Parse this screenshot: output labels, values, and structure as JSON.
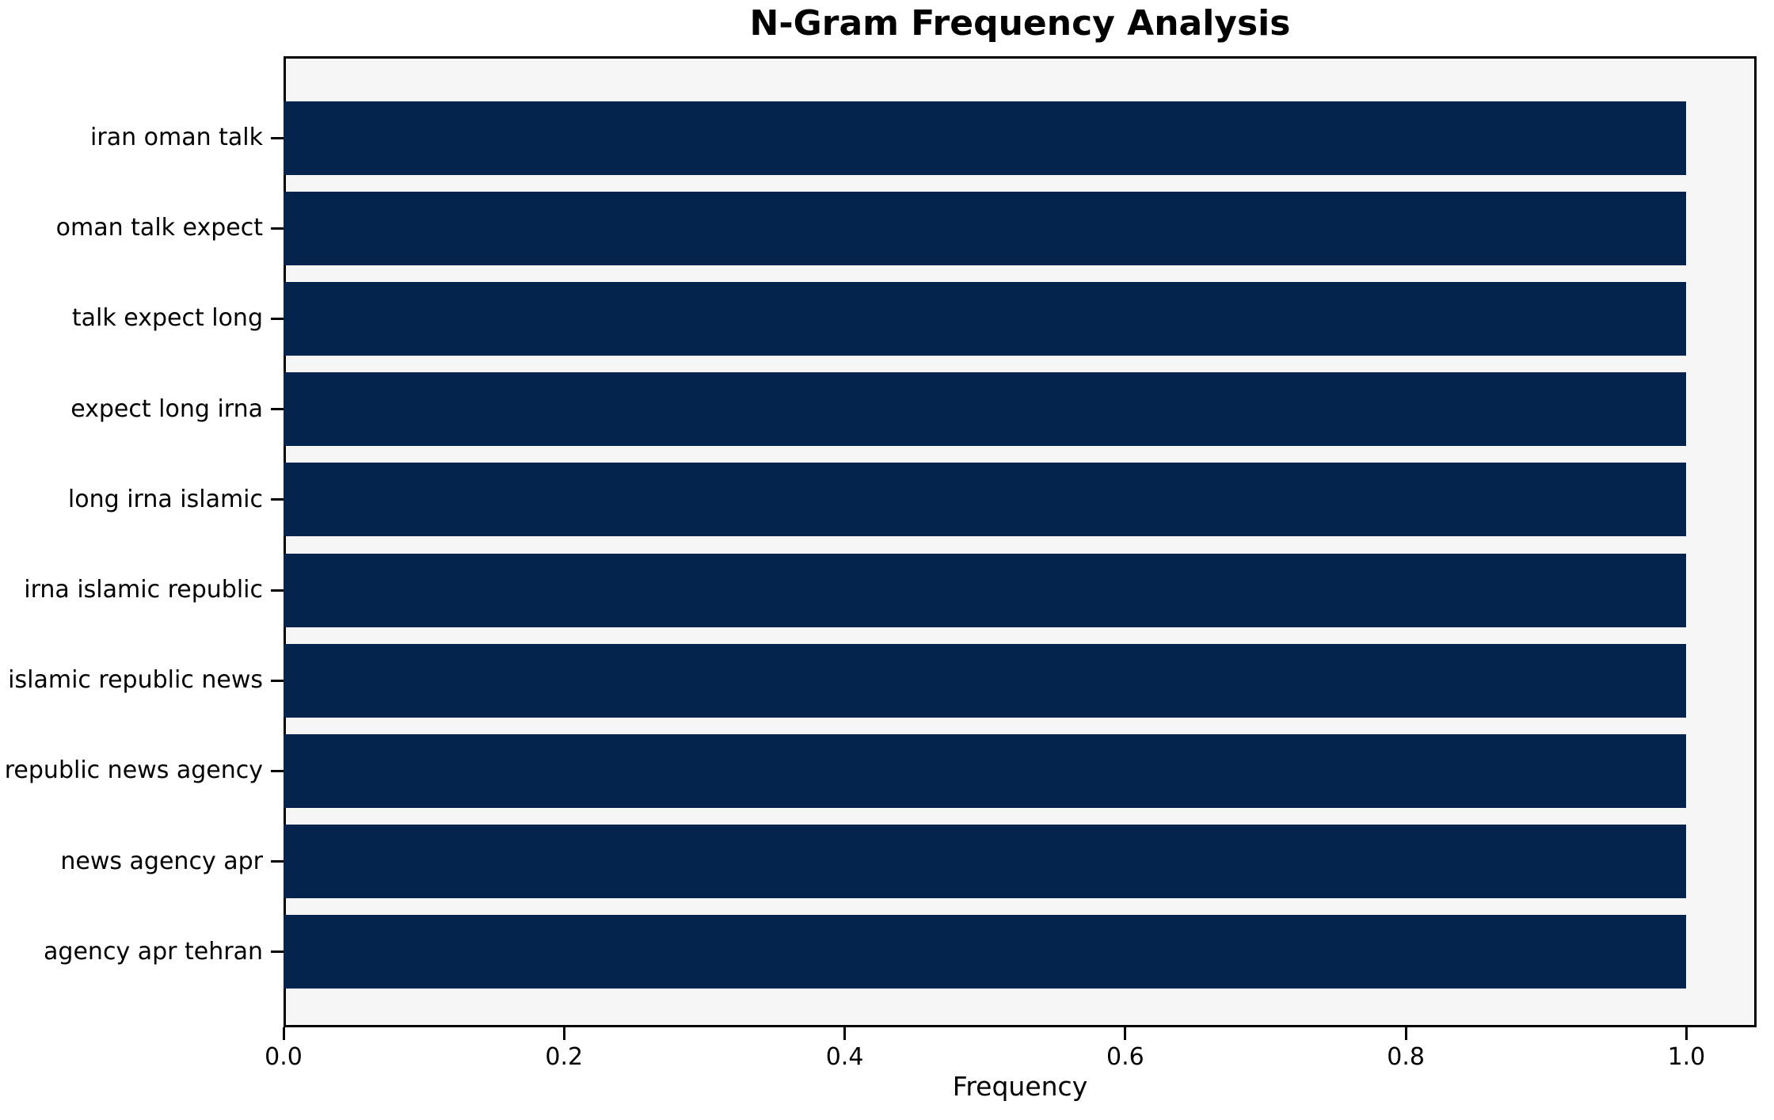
{
  "figure": {
    "background": "#ffffff"
  },
  "chart_data": {
    "type": "bar",
    "orientation": "horizontal",
    "title": "N-Gram Frequency Analysis",
    "xlabel": "Frequency",
    "categories": [
      "iran oman talk",
      "oman talk expect",
      "talk expect long",
      "expect long irna",
      "long irna islamic",
      "irna islamic republic",
      "islamic republic news",
      "republic news agency",
      "news agency apr",
      "agency apr tehran"
    ],
    "values": [
      1.0,
      1.0,
      1.0,
      1.0,
      1.0,
      1.0,
      1.0,
      1.0,
      1.0,
      1.0
    ],
    "xticks": [
      0.0,
      0.2,
      0.4,
      0.6,
      0.8,
      1.0
    ],
    "xtick_labels": [
      "0.0",
      "0.2",
      "0.4",
      "0.6",
      "0.8",
      "1.0"
    ],
    "xlim": [
      0,
      1.05
    ],
    "grid": false,
    "legend": false,
    "bar_color": "#04234d",
    "plot_background": "#f6f6f6",
    "spine_color": "#000000",
    "text_color": "#000000"
  }
}
